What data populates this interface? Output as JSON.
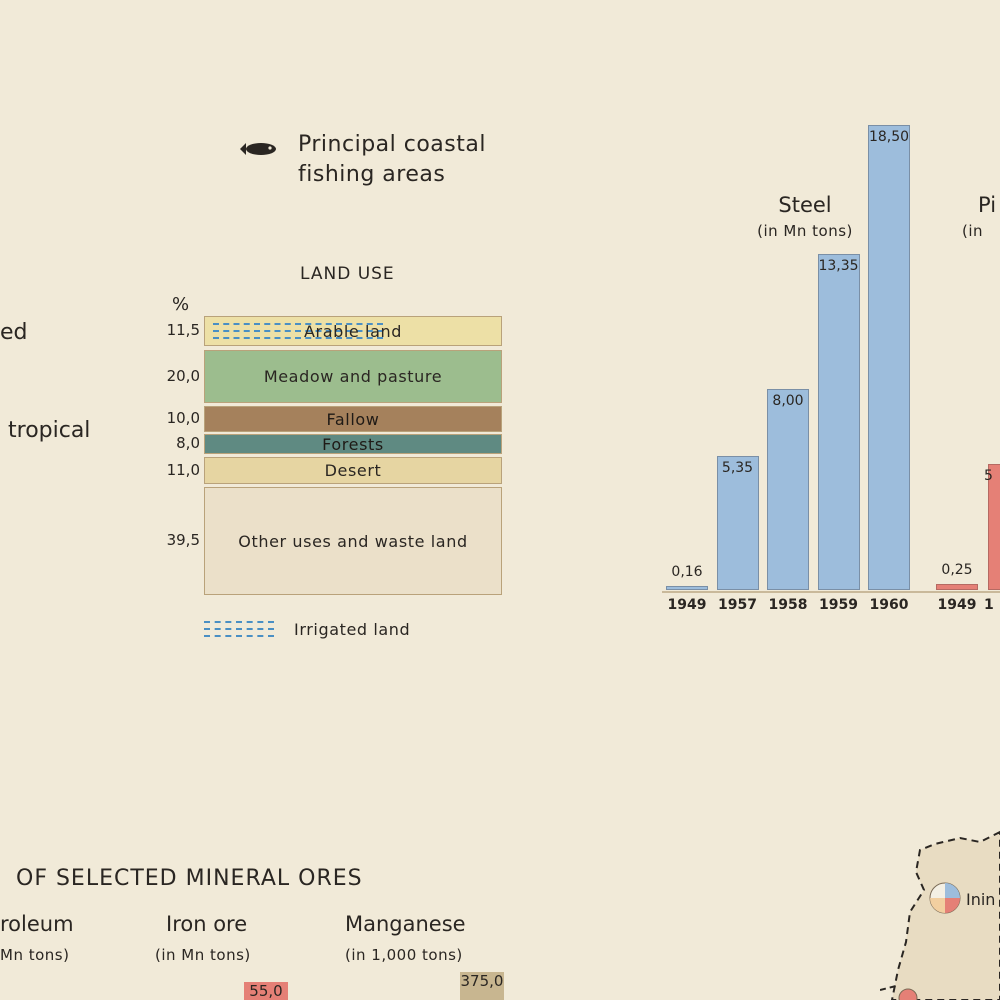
{
  "legend": {
    "fishing_label_line1": "Principal coastal",
    "fishing_label_line2": "fishing areas",
    "fishing_icon": "fish-icon",
    "left_edge_text_1": "ed",
    "left_edge_text_2": "tropical",
    "irrigated_label": "Irrigated land"
  },
  "land_use": {
    "title": "LAND USE",
    "percent_symbol": "%",
    "items": [
      {
        "pct": "11,5",
        "label": "Arable land",
        "color": "#ede0a6"
      },
      {
        "pct": "20,0",
        "label": "Meadow and pasture",
        "color": "#9cbd8e"
      },
      {
        "pct": "10,0",
        "label": "Fallow",
        "color": "#a5815c"
      },
      {
        "pct": "8,0",
        "label": "Forests",
        "color": "#5f8a82"
      },
      {
        "pct": "11,0",
        "label": "Desert",
        "color": "#e6d5a2"
      },
      {
        "pct": "39,5",
        "label": "Other uses and waste land",
        "color": "#ebe0c9"
      }
    ]
  },
  "chart_data": [
    {
      "type": "bar",
      "title": "Steel",
      "unit": "(in Mn tons)",
      "categories": [
        "1949",
        "1957",
        "1958",
        "1959",
        "1960"
      ],
      "values": [
        0.16,
        5.35,
        8.0,
        13.35,
        18.5
      ],
      "value_labels": [
        "0,16",
        "5,35",
        "8,00",
        "13,35",
        "18,50"
      ],
      "color": "#9dbddc",
      "ylim": [
        0,
        18.5
      ]
    },
    {
      "type": "bar",
      "title": "Pi",
      "unit": "(in",
      "categories": [
        "1949",
        "1"
      ],
      "values": [
        0.25,
        5.0
      ],
      "value_labels": [
        "0,25",
        "5"
      ],
      "color": "#e58076"
    }
  ],
  "minerals": {
    "title": "OF SELECTED MINERAL ORES",
    "columns": [
      {
        "name": "roleum",
        "unit": "Mn tons)"
      },
      {
        "name": "Iron ore",
        "unit": "(in Mn tons)",
        "value_label": "55,0",
        "color": "#e58076"
      },
      {
        "name": "Manganese",
        "unit": "(in 1,000 tons)",
        "value_label": "375,0",
        "color": "#c8b690"
      }
    ]
  },
  "map": {
    "place_label": "Inin"
  }
}
